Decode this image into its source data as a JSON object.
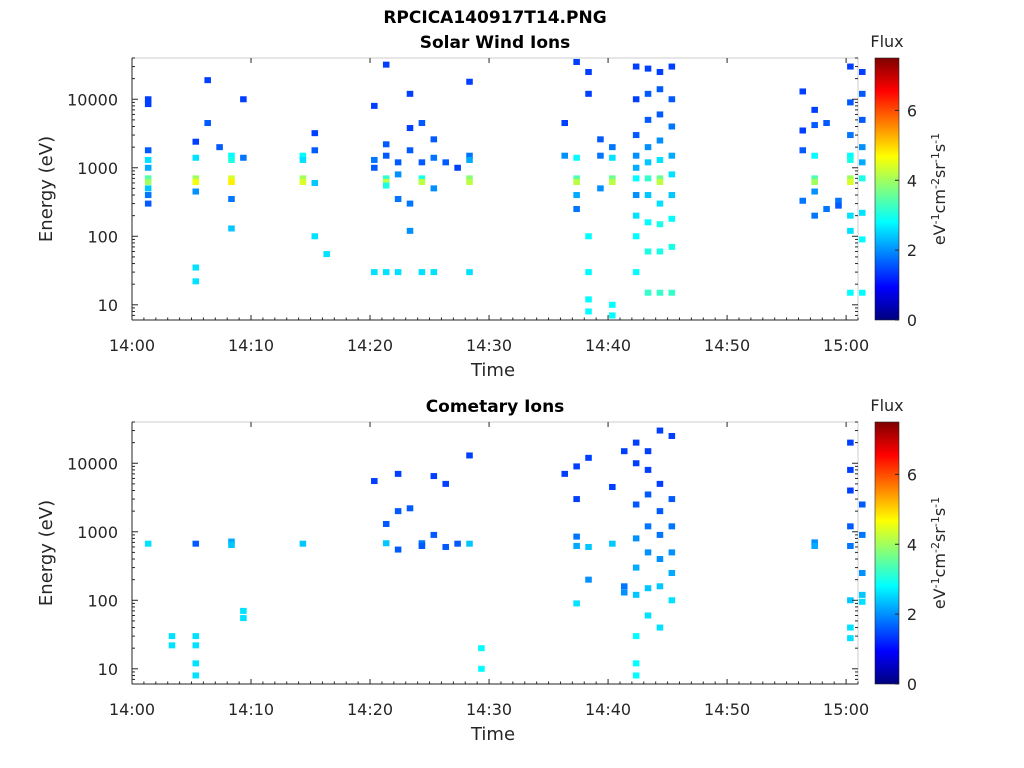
{
  "figure": {
    "title": "RPCICA140917T14.PNG"
  },
  "colormap": {
    "name": "jet",
    "stops": [
      "#00007f",
      "#0000ff",
      "#007fff",
      "#00ffff",
      "#7fff7f",
      "#ffff00",
      "#ff7f00",
      "#ff0000",
      "#7f0000"
    ]
  },
  "chart_data": [
    {
      "type": "heatmap",
      "title": "Solar Wind Ions",
      "xlabel": "Time",
      "ylabel": "Energy (eV)",
      "yscale": "log",
      "xlim": [
        "14:00",
        "15:01"
      ],
      "ylim": [
        6,
        40000
      ],
      "xticks": [
        "14:00",
        "14:10",
        "14:20",
        "14:30",
        "14:40",
        "14:50",
        "15:00"
      ],
      "yticks": [
        "10",
        "100",
        "1000",
        "10000"
      ],
      "colorbar": {
        "title": "Flux",
        "label": "eV-1cm-2sr-1s-1",
        "ticks": [
          "0",
          "2",
          "4",
          "6"
        ],
        "range": [
          0,
          7.5
        ]
      },
      "points": [
        [
          "14:01",
          1800,
          1.6
        ],
        [
          "14:01",
          1300,
          2.6
        ],
        [
          "14:01",
          1000,
          2.2
        ],
        [
          "14:01",
          700,
          3.4
        ],
        [
          "14:01",
          620,
          4.0
        ],
        [
          "14:01",
          500,
          2.4
        ],
        [
          "14:01",
          400,
          1.8
        ],
        [
          "14:01",
          300,
          1.6
        ],
        [
          "14:01",
          10000,
          1.4
        ],
        [
          "14:01",
          8500,
          1.4
        ],
        [
          "14:05",
          2400,
          1.4
        ],
        [
          "14:05",
          1400,
          2.6
        ],
        [
          "14:05",
          700,
          4.0
        ],
        [
          "14:05",
          620,
          4.6
        ],
        [
          "14:05",
          450,
          2.0
        ],
        [
          "14:05",
          35,
          2.6
        ],
        [
          "14:05",
          22,
          2.6
        ],
        [
          "14:06",
          19000,
          1.4
        ],
        [
          "14:06",
          4500,
          1.6
        ],
        [
          "14:07",
          2000,
          1.6
        ],
        [
          "14:08",
          1500,
          2.8
        ],
        [
          "14:08",
          1300,
          3.0
        ],
        [
          "14:08",
          700,
          4.4
        ],
        [
          "14:08",
          620,
          4.8
        ],
        [
          "14:08",
          350,
          1.8
        ],
        [
          "14:08",
          130,
          2.4
        ],
        [
          "14:09",
          10000,
          1.4
        ],
        [
          "14:09",
          1400,
          1.8
        ],
        [
          "14:14",
          1500,
          2.8
        ],
        [
          "14:14",
          1300,
          2.6
        ],
        [
          "14:14",
          700,
          4.0
        ],
        [
          "14:14",
          620,
          4.4
        ],
        [
          "14:15",
          3200,
          1.4
        ],
        [
          "14:15",
          1800,
          1.6
        ],
        [
          "14:15",
          600,
          2.4
        ],
        [
          "14:15",
          100,
          2.6
        ],
        [
          "14:16",
          55,
          2.6
        ],
        [
          "14:20",
          8000,
          1.4
        ],
        [
          "14:20",
          1300,
          1.8
        ],
        [
          "14:20",
          1000,
          1.6
        ],
        [
          "14:20",
          30,
          2.6
        ],
        [
          "14:21",
          32000,
          1.4
        ],
        [
          "14:21",
          2200,
          1.6
        ],
        [
          "14:21",
          1500,
          1.6
        ],
        [
          "14:21",
          700,
          3.2
        ],
        [
          "14:21",
          620,
          4.2
        ],
        [
          "14:21",
          550,
          3.0
        ],
        [
          "14:21",
          30,
          2.6
        ],
        [
          "14:22",
          1200,
          1.6
        ],
        [
          "14:22",
          800,
          2.0
        ],
        [
          "14:22",
          350,
          1.8
        ],
        [
          "14:22",
          30,
          2.6
        ],
        [
          "14:23",
          12000,
          1.4
        ],
        [
          "14:23",
          3800,
          1.4
        ],
        [
          "14:23",
          1800,
          1.6
        ],
        [
          "14:23",
          300,
          1.8
        ],
        [
          "14:23",
          120,
          2.0
        ],
        [
          "14:24",
          4500,
          1.6
        ],
        [
          "14:24",
          1200,
          1.6
        ],
        [
          "14:24",
          700,
          3.0
        ],
        [
          "14:24",
          620,
          4.2
        ],
        [
          "14:24",
          30,
          2.6
        ],
        [
          "14:25",
          2600,
          1.6
        ],
        [
          "14:25",
          1400,
          1.8
        ],
        [
          "14:25",
          500,
          2.0
        ],
        [
          "14:25",
          30,
          2.6
        ],
        [
          "14:26",
          1200,
          1.6
        ],
        [
          "14:27",
          1000,
          1.4
        ],
        [
          "14:28",
          18000,
          1.4
        ],
        [
          "14:28",
          1500,
          1.8
        ],
        [
          "14:28",
          1300,
          2.2
        ],
        [
          "14:28",
          700,
          3.8
        ],
        [
          "14:28",
          620,
          4.2
        ],
        [
          "14:28",
          30,
          2.6
        ],
        [
          "14:36",
          4500,
          1.4
        ],
        [
          "14:36",
          1500,
          2.0
        ],
        [
          "14:37",
          35000,
          1.4
        ],
        [
          "14:37",
          1400,
          2.8
        ],
        [
          "14:37",
          700,
          3.4
        ],
        [
          "14:37",
          620,
          4.2
        ],
        [
          "14:37",
          400,
          2.2
        ],
        [
          "14:37",
          250,
          1.8
        ],
        [
          "14:38",
          25000,
          1.4
        ],
        [
          "14:38",
          12000,
          1.4
        ],
        [
          "14:38",
          100,
          2.8
        ],
        [
          "14:38",
          30,
          2.8
        ],
        [
          "14:38",
          12,
          2.8
        ],
        [
          "14:38",
          8,
          2.8
        ],
        [
          "14:39",
          2600,
          1.6
        ],
        [
          "14:39",
          1500,
          1.8
        ],
        [
          "14:39",
          500,
          2.0
        ],
        [
          "14:40",
          2000,
          1.8
        ],
        [
          "14:40",
          1400,
          2.6
        ],
        [
          "14:40",
          700,
          3.6
        ],
        [
          "14:40",
          620,
          4.2
        ],
        [
          "14:40",
          10,
          2.8
        ],
        [
          "14:40",
          7,
          2.8
        ],
        [
          "14:42",
          30000,
          1.4
        ],
        [
          "14:42",
          10000,
          1.4
        ],
        [
          "14:42",
          3000,
          1.6
        ],
        [
          "14:42",
          1500,
          2.0
        ],
        [
          "14:42",
          1000,
          2.2
        ],
        [
          "14:42",
          700,
          2.8
        ],
        [
          "14:42",
          400,
          2.0
        ],
        [
          "14:42",
          200,
          2.6
        ],
        [
          "14:42",
          100,
          2.8
        ],
        [
          "14:42",
          30,
          2.8
        ],
        [
          "14:43",
          28000,
          1.4
        ],
        [
          "14:43",
          12000,
          1.6
        ],
        [
          "14:43",
          5000,
          1.6
        ],
        [
          "14:43",
          2000,
          2.0
        ],
        [
          "14:43",
          1200,
          2.4
        ],
        [
          "14:43",
          700,
          3.2
        ],
        [
          "14:43",
          400,
          2.4
        ],
        [
          "14:43",
          160,
          2.8
        ],
        [
          "14:43",
          60,
          3.0
        ],
        [
          "14:43",
          15,
          3.2
        ],
        [
          "14:44",
          25000,
          1.4
        ],
        [
          "14:44",
          14000,
          1.6
        ],
        [
          "14:44",
          6000,
          1.6
        ],
        [
          "14:44",
          2500,
          2.0
        ],
        [
          "14:44",
          1300,
          2.6
        ],
        [
          "14:44",
          700,
          3.6
        ],
        [
          "14:44",
          620,
          4.2
        ],
        [
          "14:44",
          300,
          2.6
        ],
        [
          "14:44",
          150,
          3.0
        ],
        [
          "14:44",
          60,
          3.0
        ],
        [
          "14:44",
          15,
          3.2
        ],
        [
          "14:45",
          30000,
          1.4
        ],
        [
          "14:45",
          10000,
          1.6
        ],
        [
          "14:45",
          4000,
          1.8
        ],
        [
          "14:45",
          1500,
          2.2
        ],
        [
          "14:45",
          800,
          2.6
        ],
        [
          "14:45",
          400,
          2.4
        ],
        [
          "14:45",
          180,
          2.8
        ],
        [
          "14:45",
          70,
          3.0
        ],
        [
          "14:45",
          15,
          3.2
        ],
        [
          "14:56",
          13000,
          1.4
        ],
        [
          "14:56",
          3500,
          1.4
        ],
        [
          "14:56",
          1800,
          1.6
        ],
        [
          "14:56",
          330,
          1.8
        ],
        [
          "14:57",
          7000,
          1.4
        ],
        [
          "14:57",
          4200,
          1.6
        ],
        [
          "14:57",
          1500,
          2.8
        ],
        [
          "14:57",
          700,
          3.4
        ],
        [
          "14:57",
          620,
          4.0
        ],
        [
          "14:57",
          450,
          2.0
        ],
        [
          "14:57",
          200,
          1.8
        ],
        [
          "14:58",
          4500,
          1.6
        ],
        [
          "14:58",
          250,
          1.8
        ],
        [
          "14:59",
          330,
          1.8
        ],
        [
          "14:59",
          280,
          1.6
        ],
        [
          "15:00",
          30000,
          1.4
        ],
        [
          "15:00",
          9000,
          1.6
        ],
        [
          "15:00",
          3000,
          1.8
        ],
        [
          "15:00",
          1500,
          2.8
        ],
        [
          "15:00",
          1300,
          3.0
        ],
        [
          "15:00",
          700,
          4.0
        ],
        [
          "15:00",
          620,
          4.4
        ],
        [
          "15:00",
          200,
          2.6
        ],
        [
          "15:00",
          120,
          2.6
        ],
        [
          "15:00",
          15,
          2.8
        ],
        [
          "15:01",
          25000,
          1.4
        ],
        [
          "15:01",
          12000,
          1.6
        ],
        [
          "15:01",
          5000,
          1.6
        ],
        [
          "15:01",
          2000,
          2.0
        ],
        [
          "15:01",
          1200,
          2.2
        ],
        [
          "15:01",
          700,
          3.0
        ],
        [
          "15:01",
          220,
          2.6
        ],
        [
          "15:01",
          90,
          2.8
        ],
        [
          "15:01",
          15,
          2.8
        ]
      ]
    },
    {
      "type": "heatmap",
      "title": "Cometary Ions",
      "xlabel": "Time",
      "ylabel": "Energy (eV)",
      "yscale": "log",
      "xlim": [
        "14:00",
        "15:01"
      ],
      "ylim": [
        6,
        40000
      ],
      "xticks": [
        "14:00",
        "14:10",
        "14:20",
        "14:30",
        "14:40",
        "14:50",
        "15:00"
      ],
      "yticks": [
        "10",
        "100",
        "1000",
        "10000"
      ],
      "colorbar": {
        "title": "Flux",
        "label": "eV-1cm-2sr-1s-1",
        "ticks": [
          "0",
          "2",
          "4",
          "6"
        ],
        "range": [
          0,
          7.5
        ]
      },
      "points": [
        [
          "14:01",
          670,
          2.6
        ],
        [
          "14:03",
          30,
          2.6
        ],
        [
          "14:03",
          22,
          2.6
        ],
        [
          "14:05",
          670,
          1.6
        ],
        [
          "14:05",
          12,
          2.6
        ],
        [
          "14:05",
          8,
          2.6
        ],
        [
          "14:05",
          30,
          2.6
        ],
        [
          "14:05",
          22,
          2.6
        ],
        [
          "14:08",
          720,
          2.2
        ],
        [
          "14:08",
          640,
          2.4
        ],
        [
          "14:09",
          70,
          2.6
        ],
        [
          "14:09",
          55,
          2.6
        ],
        [
          "14:14",
          670,
          2.4
        ],
        [
          "14:20",
          5500,
          1.4
        ],
        [
          "14:21",
          680,
          2.4
        ],
        [
          "14:21",
          1300,
          1.6
        ],
        [
          "14:22",
          2000,
          1.6
        ],
        [
          "14:22",
          7000,
          1.4
        ],
        [
          "14:22",
          550,
          1.6
        ],
        [
          "14:23",
          2200,
          1.6
        ],
        [
          "14:24",
          680,
          1.8
        ],
        [
          "14:24",
          620,
          1.6
        ],
        [
          "14:25",
          6500,
          1.4
        ],
        [
          "14:25",
          900,
          1.6
        ],
        [
          "14:26",
          600,
          1.6
        ],
        [
          "14:26",
          5000,
          1.4
        ],
        [
          "14:27",
          670,
          1.6
        ],
        [
          "14:28",
          670,
          2.4
        ],
        [
          "14:28",
          13000,
          1.4
        ],
        [
          "14:29",
          20,
          2.8
        ],
        [
          "14:29",
          10,
          2.8
        ],
        [
          "14:36",
          7000,
          1.4
        ],
        [
          "14:37",
          9000,
          1.4
        ],
        [
          "14:37",
          3000,
          1.4
        ],
        [
          "14:37",
          850,
          1.8
        ],
        [
          "14:37",
          620,
          2.2
        ],
        [
          "14:37",
          90,
          2.6
        ],
        [
          "14:38",
          12000,
          1.4
        ],
        [
          "14:38",
          600,
          2.4
        ],
        [
          "14:38",
          200,
          2.0
        ],
        [
          "14:40",
          4500,
          1.4
        ],
        [
          "14:40",
          670,
          2.4
        ],
        [
          "14:41",
          15000,
          1.4
        ],
        [
          "14:41",
          160,
          1.8
        ],
        [
          "14:41",
          130,
          2.0
        ],
        [
          "14:42",
          20000,
          1.4
        ],
        [
          "14:42",
          10000,
          1.4
        ],
        [
          "14:42",
          2500,
          1.6
        ],
        [
          "14:42",
          800,
          2.0
        ],
        [
          "14:42",
          300,
          2.2
        ],
        [
          "14:42",
          120,
          2.4
        ],
        [
          "14:42",
          30,
          2.8
        ],
        [
          "14:42",
          12,
          2.8
        ],
        [
          "14:42",
          8,
          2.8
        ],
        [
          "14:43",
          15000,
          1.4
        ],
        [
          "14:43",
          8000,
          1.4
        ],
        [
          "14:43",
          3500,
          1.6
        ],
        [
          "14:43",
          1200,
          1.8
        ],
        [
          "14:43",
          500,
          2.0
        ],
        [
          "14:43",
          150,
          2.4
        ],
        [
          "14:43",
          60,
          2.6
        ],
        [
          "14:44",
          30000,
          1.4
        ],
        [
          "14:44",
          5000,
          1.4
        ],
        [
          "14:44",
          2000,
          1.6
        ],
        [
          "14:44",
          900,
          1.8
        ],
        [
          "14:44",
          400,
          2.0
        ],
        [
          "14:44",
          160,
          2.4
        ],
        [
          "14:44",
          40,
          2.6
        ],
        [
          "14:45",
          25000,
          1.4
        ],
        [
          "14:45",
          3000,
          1.6
        ],
        [
          "14:45",
          1200,
          1.8
        ],
        [
          "14:45",
          500,
          2.0
        ],
        [
          "14:45",
          250,
          2.2
        ],
        [
          "14:45",
          100,
          2.6
        ],
        [
          "14:57",
          700,
          2.0
        ],
        [
          "14:57",
          620,
          2.2
        ],
        [
          "15:00",
          20000,
          1.4
        ],
        [
          "15:00",
          8000,
          1.4
        ],
        [
          "15:00",
          4000,
          1.4
        ],
        [
          "15:00",
          1200,
          1.6
        ],
        [
          "15:00",
          620,
          1.8
        ],
        [
          "15:00",
          100,
          2.4
        ],
        [
          "15:00",
          40,
          2.6
        ],
        [
          "15:00",
          28,
          2.6
        ],
        [
          "15:01",
          2500,
          1.6
        ],
        [
          "15:01",
          900,
          1.8
        ],
        [
          "15:01",
          250,
          2.0
        ],
        [
          "15:01",
          120,
          2.4
        ],
        [
          "15:01",
          95,
          2.6
        ]
      ]
    }
  ]
}
